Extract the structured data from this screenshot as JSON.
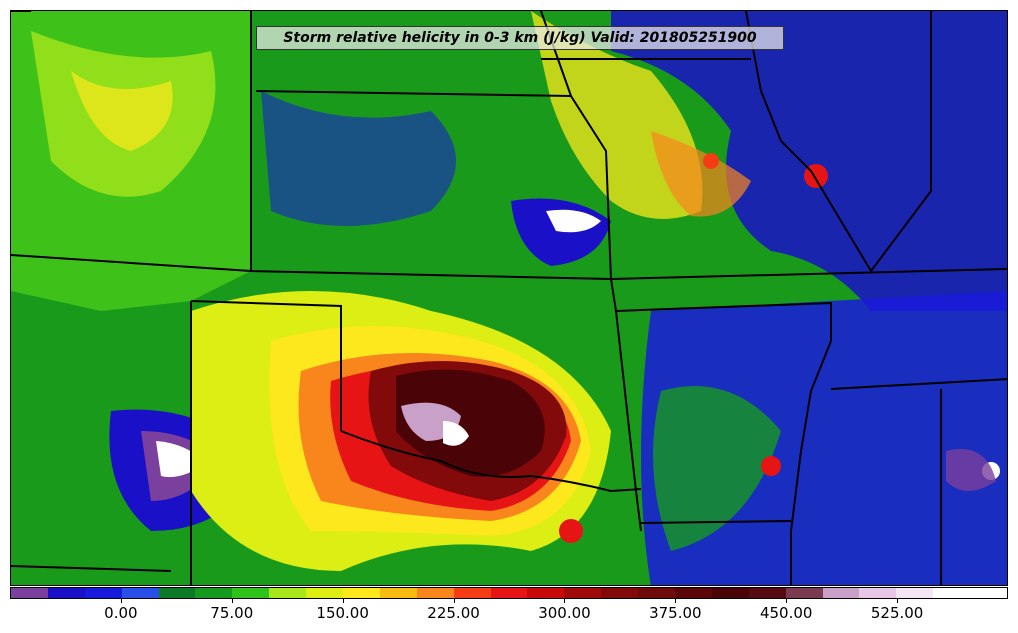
{
  "map": {
    "title": "Storm relative helicity in 0-3 km (J/kg) Valid: 201805251900",
    "colorbar": {
      "tick_labels": [
        "0.00",
        "75.00",
        "150.00",
        "225.00",
        "300.00",
        "375.00",
        "450.00",
        "525.00"
      ],
      "tick_values": [
        0,
        75,
        150,
        225,
        300,
        375,
        450,
        525
      ],
      "range": [
        -75,
        600
      ],
      "step": 25,
      "colors": [
        "#7b3f9e",
        "#1a10c8",
        "#1a1adc",
        "#2850e8",
        "#0d7a2a",
        "#159a1f",
        "#2fc21a",
        "#a6e61a",
        "#dcee14",
        "#fce81c",
        "#f8bc10",
        "#f8861c",
        "#f53c14",
        "#e61414",
        "#c80a0a",
        "#a00a0a",
        "#820a0a",
        "#6e0a0a",
        "#5a0508",
        "#4a0306",
        "#580a12",
        "#7a3a50",
        "#c8a0c8",
        "#e6c8e6",
        "#f5e6f5",
        "#ffffff",
        "#ffffff"
      ]
    }
  }
}
